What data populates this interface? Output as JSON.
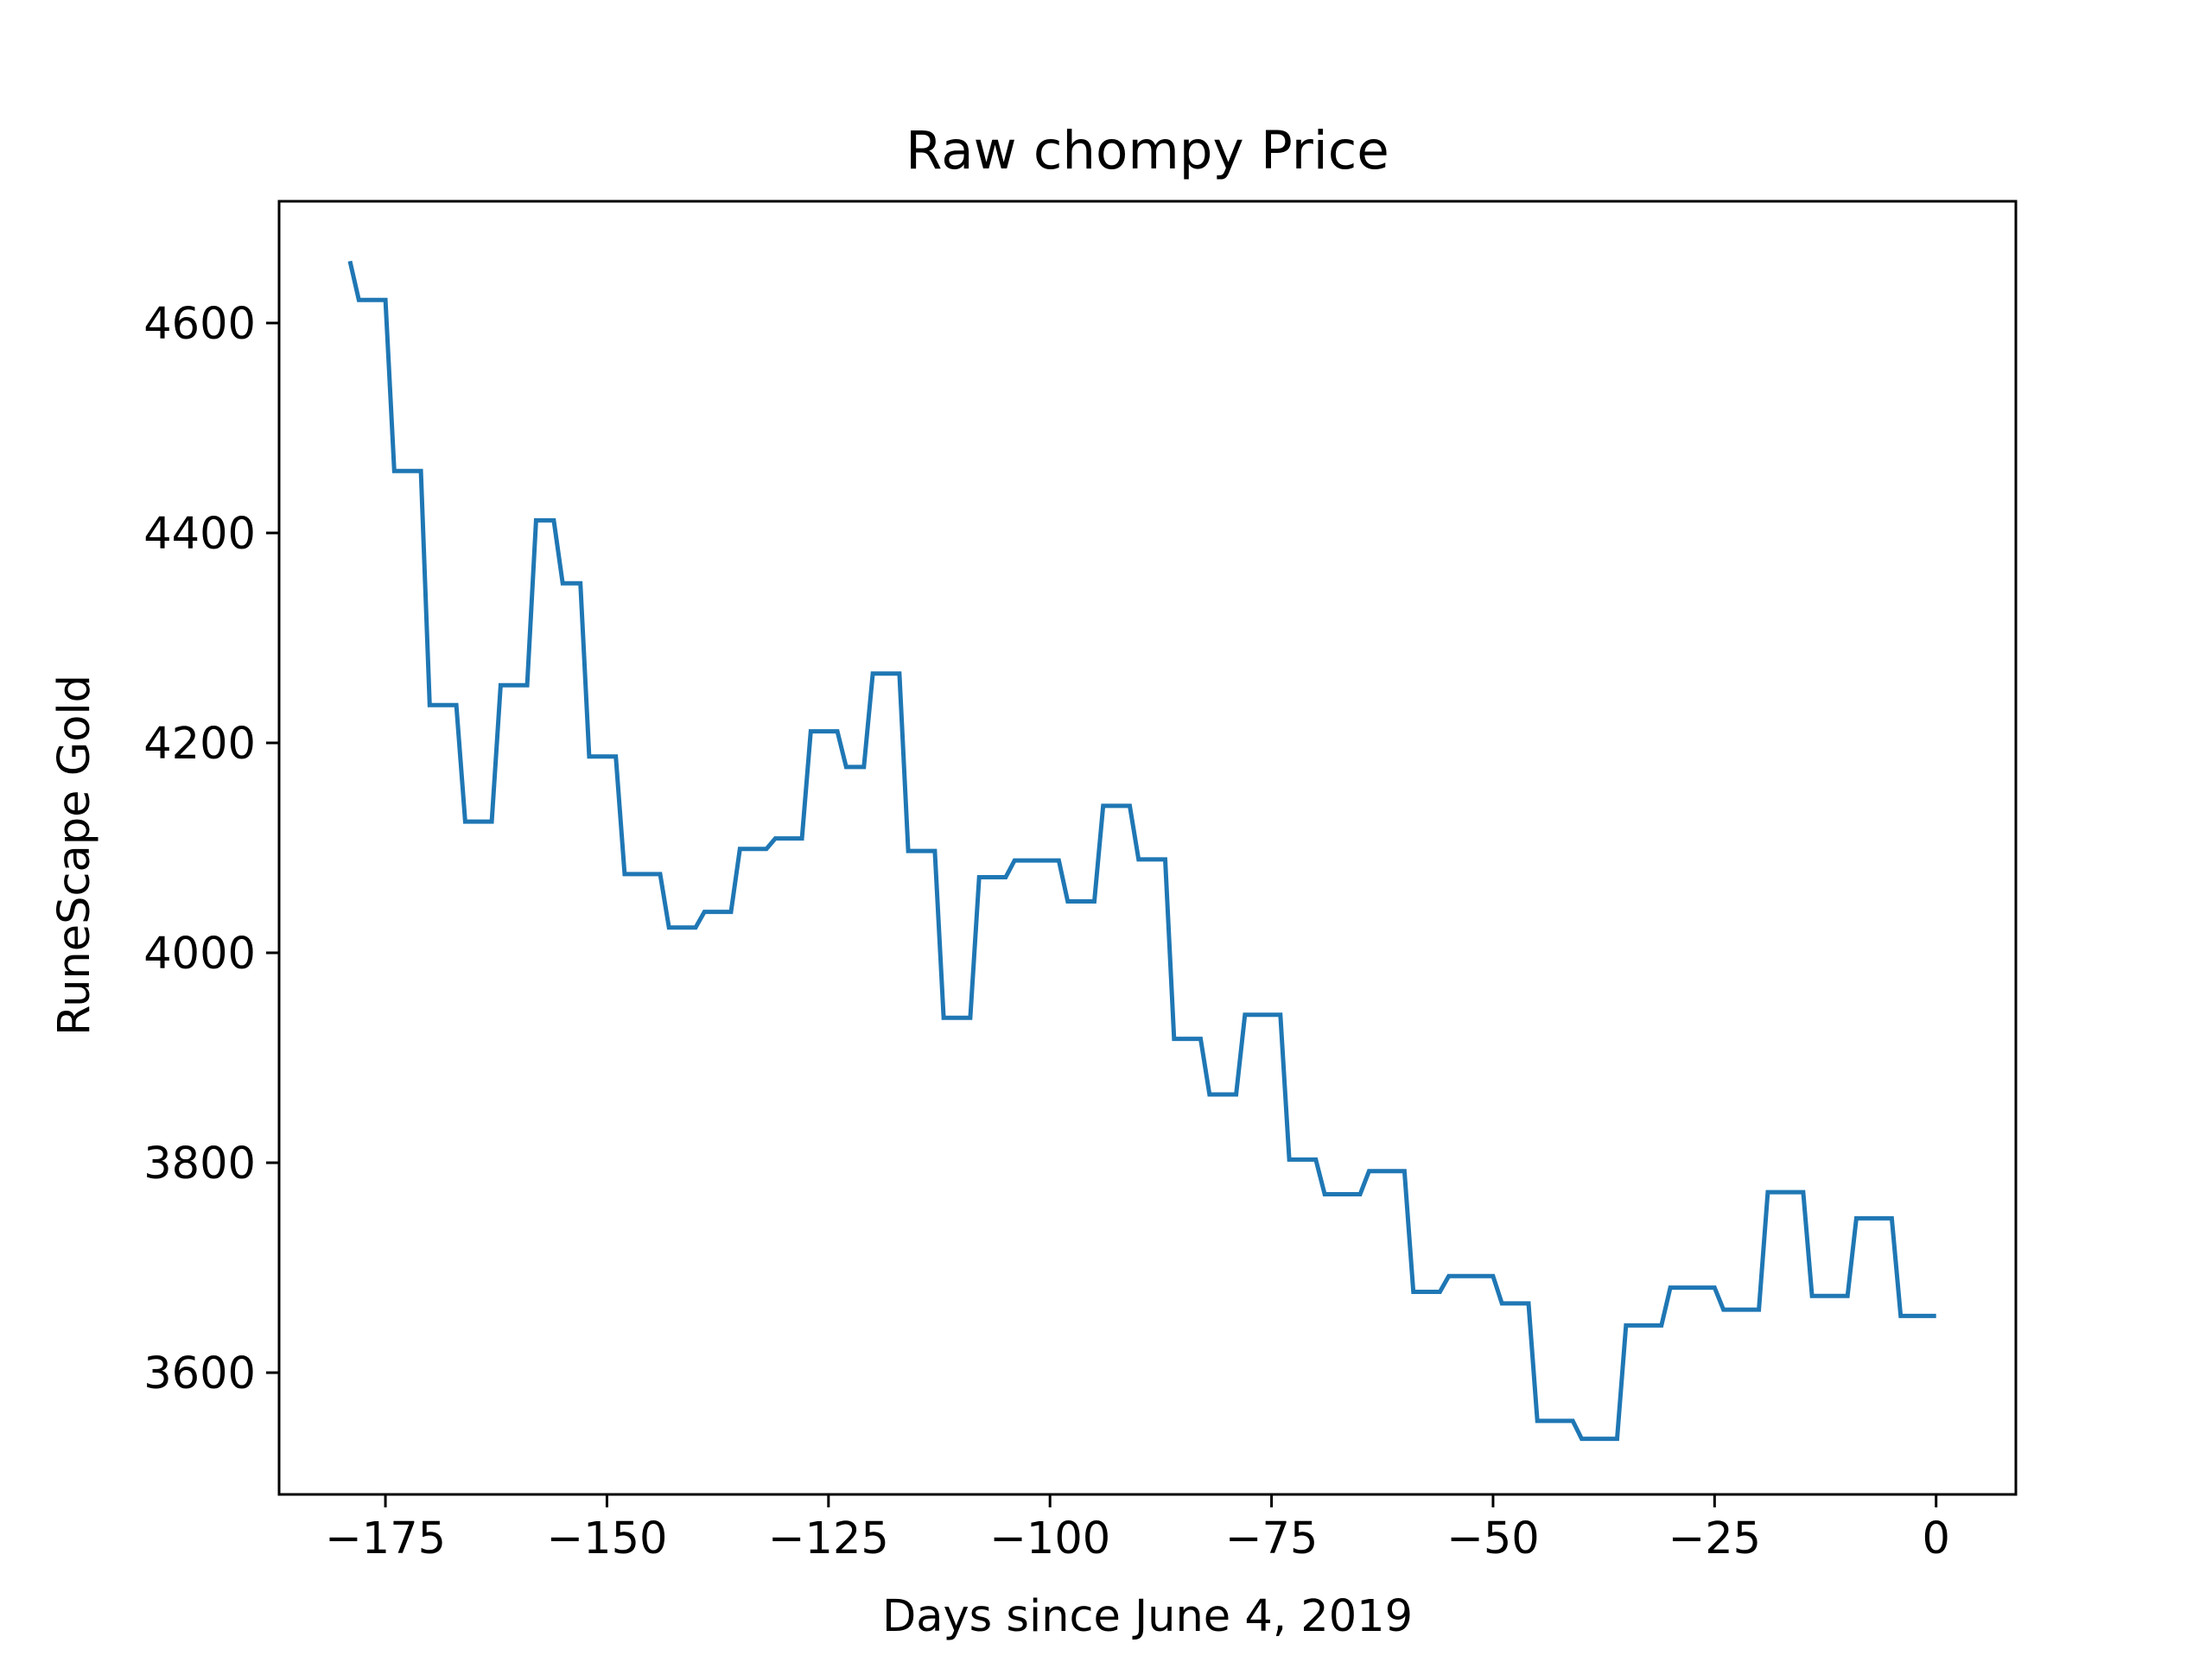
{
  "chart_data": {
    "type": "line",
    "title": "Raw chompy Price",
    "xlabel": "Days since June 4, 2019",
    "ylabel": "RuneScape Gold",
    "xlim": [
      -187,
      9
    ],
    "ylim": [
      3484,
      4716
    ],
    "xticks": [
      -175,
      -150,
      -125,
      -100,
      -75,
      -50,
      -25,
      0
    ],
    "xtick_labels": [
      "−175",
      "−150",
      "−125",
      "−100",
      "−75",
      "−50",
      "−25",
      "0"
    ],
    "yticks": [
      3600,
      3800,
      4000,
      4200,
      4400,
      4600
    ],
    "ytick_labels": [
      "3600",
      "3800",
      "4000",
      "4200",
      "4400",
      "4600"
    ],
    "grid": false,
    "series": [
      {
        "color": "#1f77b4",
        "x": [
          -179,
          -178,
          -175,
          -174,
          -171,
          -170,
          -167,
          -166,
          -163,
          -162,
          -159,
          -158,
          -156,
          -155,
          -153,
          -152,
          -149,
          -148,
          -144,
          -143,
          -140,
          -139,
          -136,
          -135,
          -132,
          -131,
          -128,
          -127,
          -124,
          -123,
          -121,
          -120,
          -117,
          -116,
          -113,
          -112,
          -109,
          -108,
          -105,
          -104,
          -99,
          -98,
          -95,
          -94,
          -91,
          -90,
          -87,
          -86,
          -83,
          -82,
          -79,
          -78,
          -74,
          -73,
          -70,
          -69,
          -65,
          -64,
          -60,
          -59,
          -56,
          -55,
          -50,
          -49,
          -46,
          -45,
          -41,
          -40,
          -36,
          -35,
          -31,
          -30,
          -25,
          -24,
          -20,
          -19,
          -15,
          -14,
          -10,
          -9,
          -5,
          -4,
          0
        ],
        "y": [
          4659,
          4622,
          4622,
          4459,
          4459,
          4236,
          4236,
          4125,
          4125,
          4255,
          4255,
          4412,
          4412,
          4352,
          4352,
          4187,
          4187,
          4075,
          4075,
          4024,
          4024,
          4039,
          4039,
          4099,
          4099,
          4109,
          4109,
          4211,
          4211,
          4177,
          4177,
          4266,
          4266,
          4097,
          4097,
          3938,
          3938,
          4072,
          4072,
          4088,
          4088,
          4049,
          4049,
          4140,
          4140,
          4089,
          4089,
          3918,
          3918,
          3865,
          3865,
          3941,
          3941,
          3803,
          3803,
          3770,
          3770,
          3792,
          3792,
          3677,
          3677,
          3692,
          3692,
          3666,
          3666,
          3554,
          3554,
          3537,
          3537,
          3645,
          3645,
          3681,
          3681,
          3660,
          3660,
          3772,
          3772,
          3673,
          3673,
          3747,
          3747,
          3654,
          3654
        ]
      }
    ]
  }
}
